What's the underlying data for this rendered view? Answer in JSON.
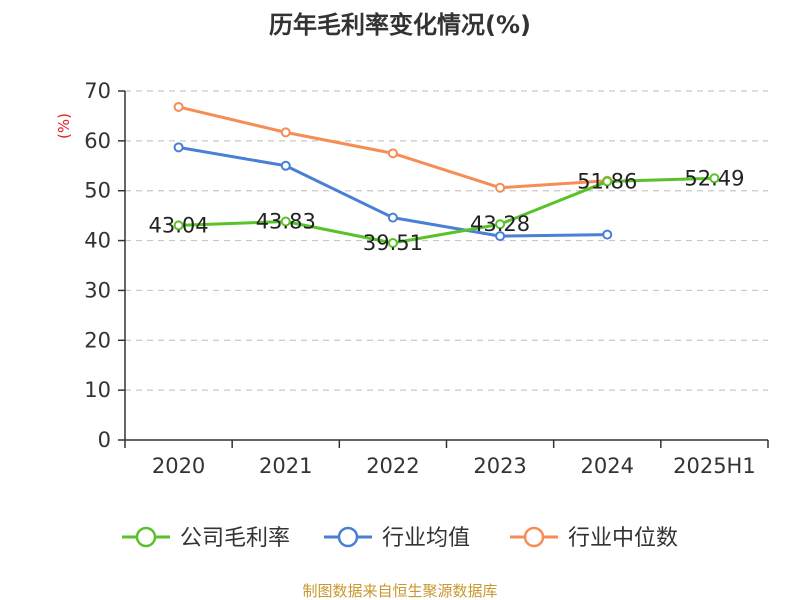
{
  "chart_data": {
    "type": "line",
    "title": "历年毛利率变化情况(%)",
    "ylabel": "(%)",
    "categories": [
      "2020",
      "2021",
      "2022",
      "2023",
      "2024",
      "2025H1"
    ],
    "ylim": [
      0,
      70
    ],
    "yticks": [
      0,
      10,
      20,
      30,
      40,
      50,
      60,
      70
    ],
    "grid": true,
    "legend": "bottom",
    "series": [
      {
        "name": "公司毛利率",
        "color": "#5ac229",
        "values": [
          43.04,
          43.83,
          39.51,
          43.28,
          51.86,
          52.49
        ],
        "labels": [
          "43.04",
          "43.83",
          "39.51",
          "43.28",
          "51.86",
          "52.49"
        ]
      },
      {
        "name": "行业均值",
        "color": "#4a7fd6",
        "values": [
          58.7,
          55.0,
          44.6,
          40.9,
          41.2,
          null
        ]
      },
      {
        "name": "行业中位数",
        "color": "#f58d55",
        "values": [
          66.8,
          61.7,
          57.5,
          50.6,
          52.0,
          null
        ]
      }
    ]
  },
  "source": "制图数据来自恒生聚源数据库"
}
